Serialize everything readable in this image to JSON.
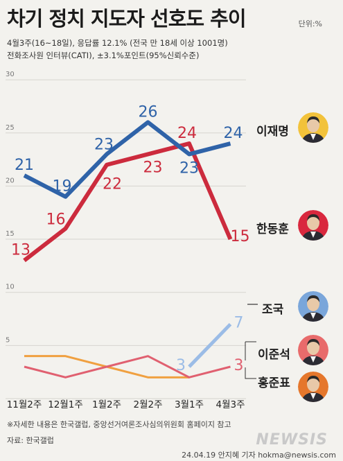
{
  "title": "차기 정치 지도자 선호도 추이",
  "unit": "단위:%",
  "subtitle1": "4월3주(16~18일), 응답률 12.1% (전국 만 18세 이상 1001명)",
  "subtitle2": "전화조사원 인터뷰(CATI), ±3.1%포인트(95%신뢰수준)",
  "note": "※자세한 내용은 한국갤럽, 중앙선거여론조사심의위원회 홈페이지 참고",
  "source": "자료: 한국갤럽",
  "credit": "24.04.19 안지혜 기자 hokma@newsis.com",
  "logo": "NEWSIS",
  "people": [
    {
      "name": "이재명",
      "color": "#f2c23a",
      "avatar": "person-icon"
    },
    {
      "name": "한동훈",
      "color": "#d9283e",
      "avatar": "person-icon"
    },
    {
      "name": "조국",
      "color": "#7aa6da",
      "avatar": "person-icon"
    },
    {
      "name": "이준석",
      "color": "#e86b6b",
      "avatar": "person-icon"
    },
    {
      "name": "홍준표",
      "color": "#e5772c",
      "avatar": "person-icon"
    }
  ],
  "chart_data": {
    "type": "line",
    "categories": [
      "11월2주",
      "12월1주",
      "1월2주",
      "2월2주",
      "3월1주",
      "4월3주"
    ],
    "ylim": [
      0,
      30
    ],
    "yticks": [
      "0",
      "5",
      "10",
      "15",
      "20",
      "25",
      "30"
    ],
    "grid": true,
    "series": [
      {
        "name": "이재명",
        "color": "#2f63a8",
        "values": [
          21,
          19,
          23,
          26,
          23,
          24
        ],
        "labels": [
          "21",
          "19",
          "23",
          "26",
          "23",
          "24"
        ]
      },
      {
        "name": "한동훈",
        "color": "#cc2b3d",
        "values": [
          13,
          16,
          22,
          23,
          24,
          15
        ],
        "labels": [
          "13",
          "16",
          "22",
          "23",
          "24",
          "15"
        ]
      },
      {
        "name": "조국",
        "color": "#9bbce6",
        "values": [
          null,
          null,
          null,
          null,
          3,
          7
        ],
        "labels": [
          "",
          "",
          "",
          "",
          "3",
          "7"
        ]
      },
      {
        "name": "이준석",
        "color": "#e06070",
        "values": [
          3,
          2,
          3,
          4,
          2,
          3
        ],
        "labels": [
          "",
          "",
          "",
          "",
          "",
          "3"
        ]
      },
      {
        "name": "홍준표",
        "color": "#f0a040",
        "values": [
          4,
          4,
          3,
          2,
          2,
          null
        ],
        "labels": [
          "",
          "",
          "",
          "",
          "",
          ""
        ]
      }
    ]
  }
}
